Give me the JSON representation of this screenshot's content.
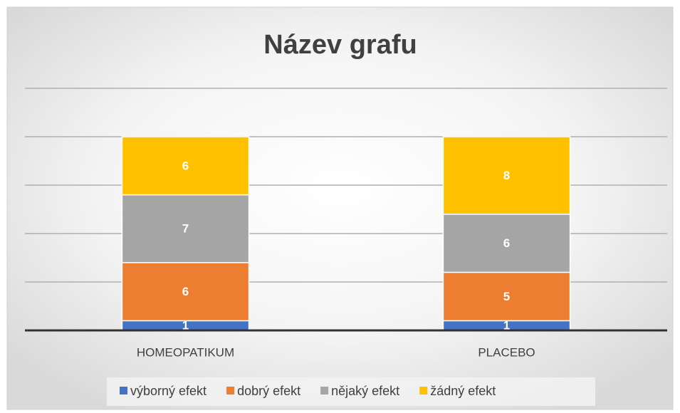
{
  "chart_data": {
    "type": "stacked_bar",
    "title": "Název grafu",
    "categories": [
      "HOMEOPATIKUM",
      "PLACEBO"
    ],
    "series": [
      {
        "name": "výborný efekt",
        "color": "#4472c4",
        "values": [
          1,
          1
        ]
      },
      {
        "name": "dobrý efekt",
        "color": "#ed7d31",
        "values": [
          6,
          5
        ]
      },
      {
        "name": "nějaký efekt",
        "color": "#a5a5a5",
        "values": [
          7,
          6
        ]
      },
      {
        "name": "žádný efekt",
        "color": "#ffc000",
        "values": [
          6,
          8
        ]
      }
    ],
    "ylim": [
      0,
      25
    ],
    "yticks": [
      0,
      5,
      10,
      15,
      20,
      25
    ],
    "grid": true,
    "legend": "bottom"
  }
}
